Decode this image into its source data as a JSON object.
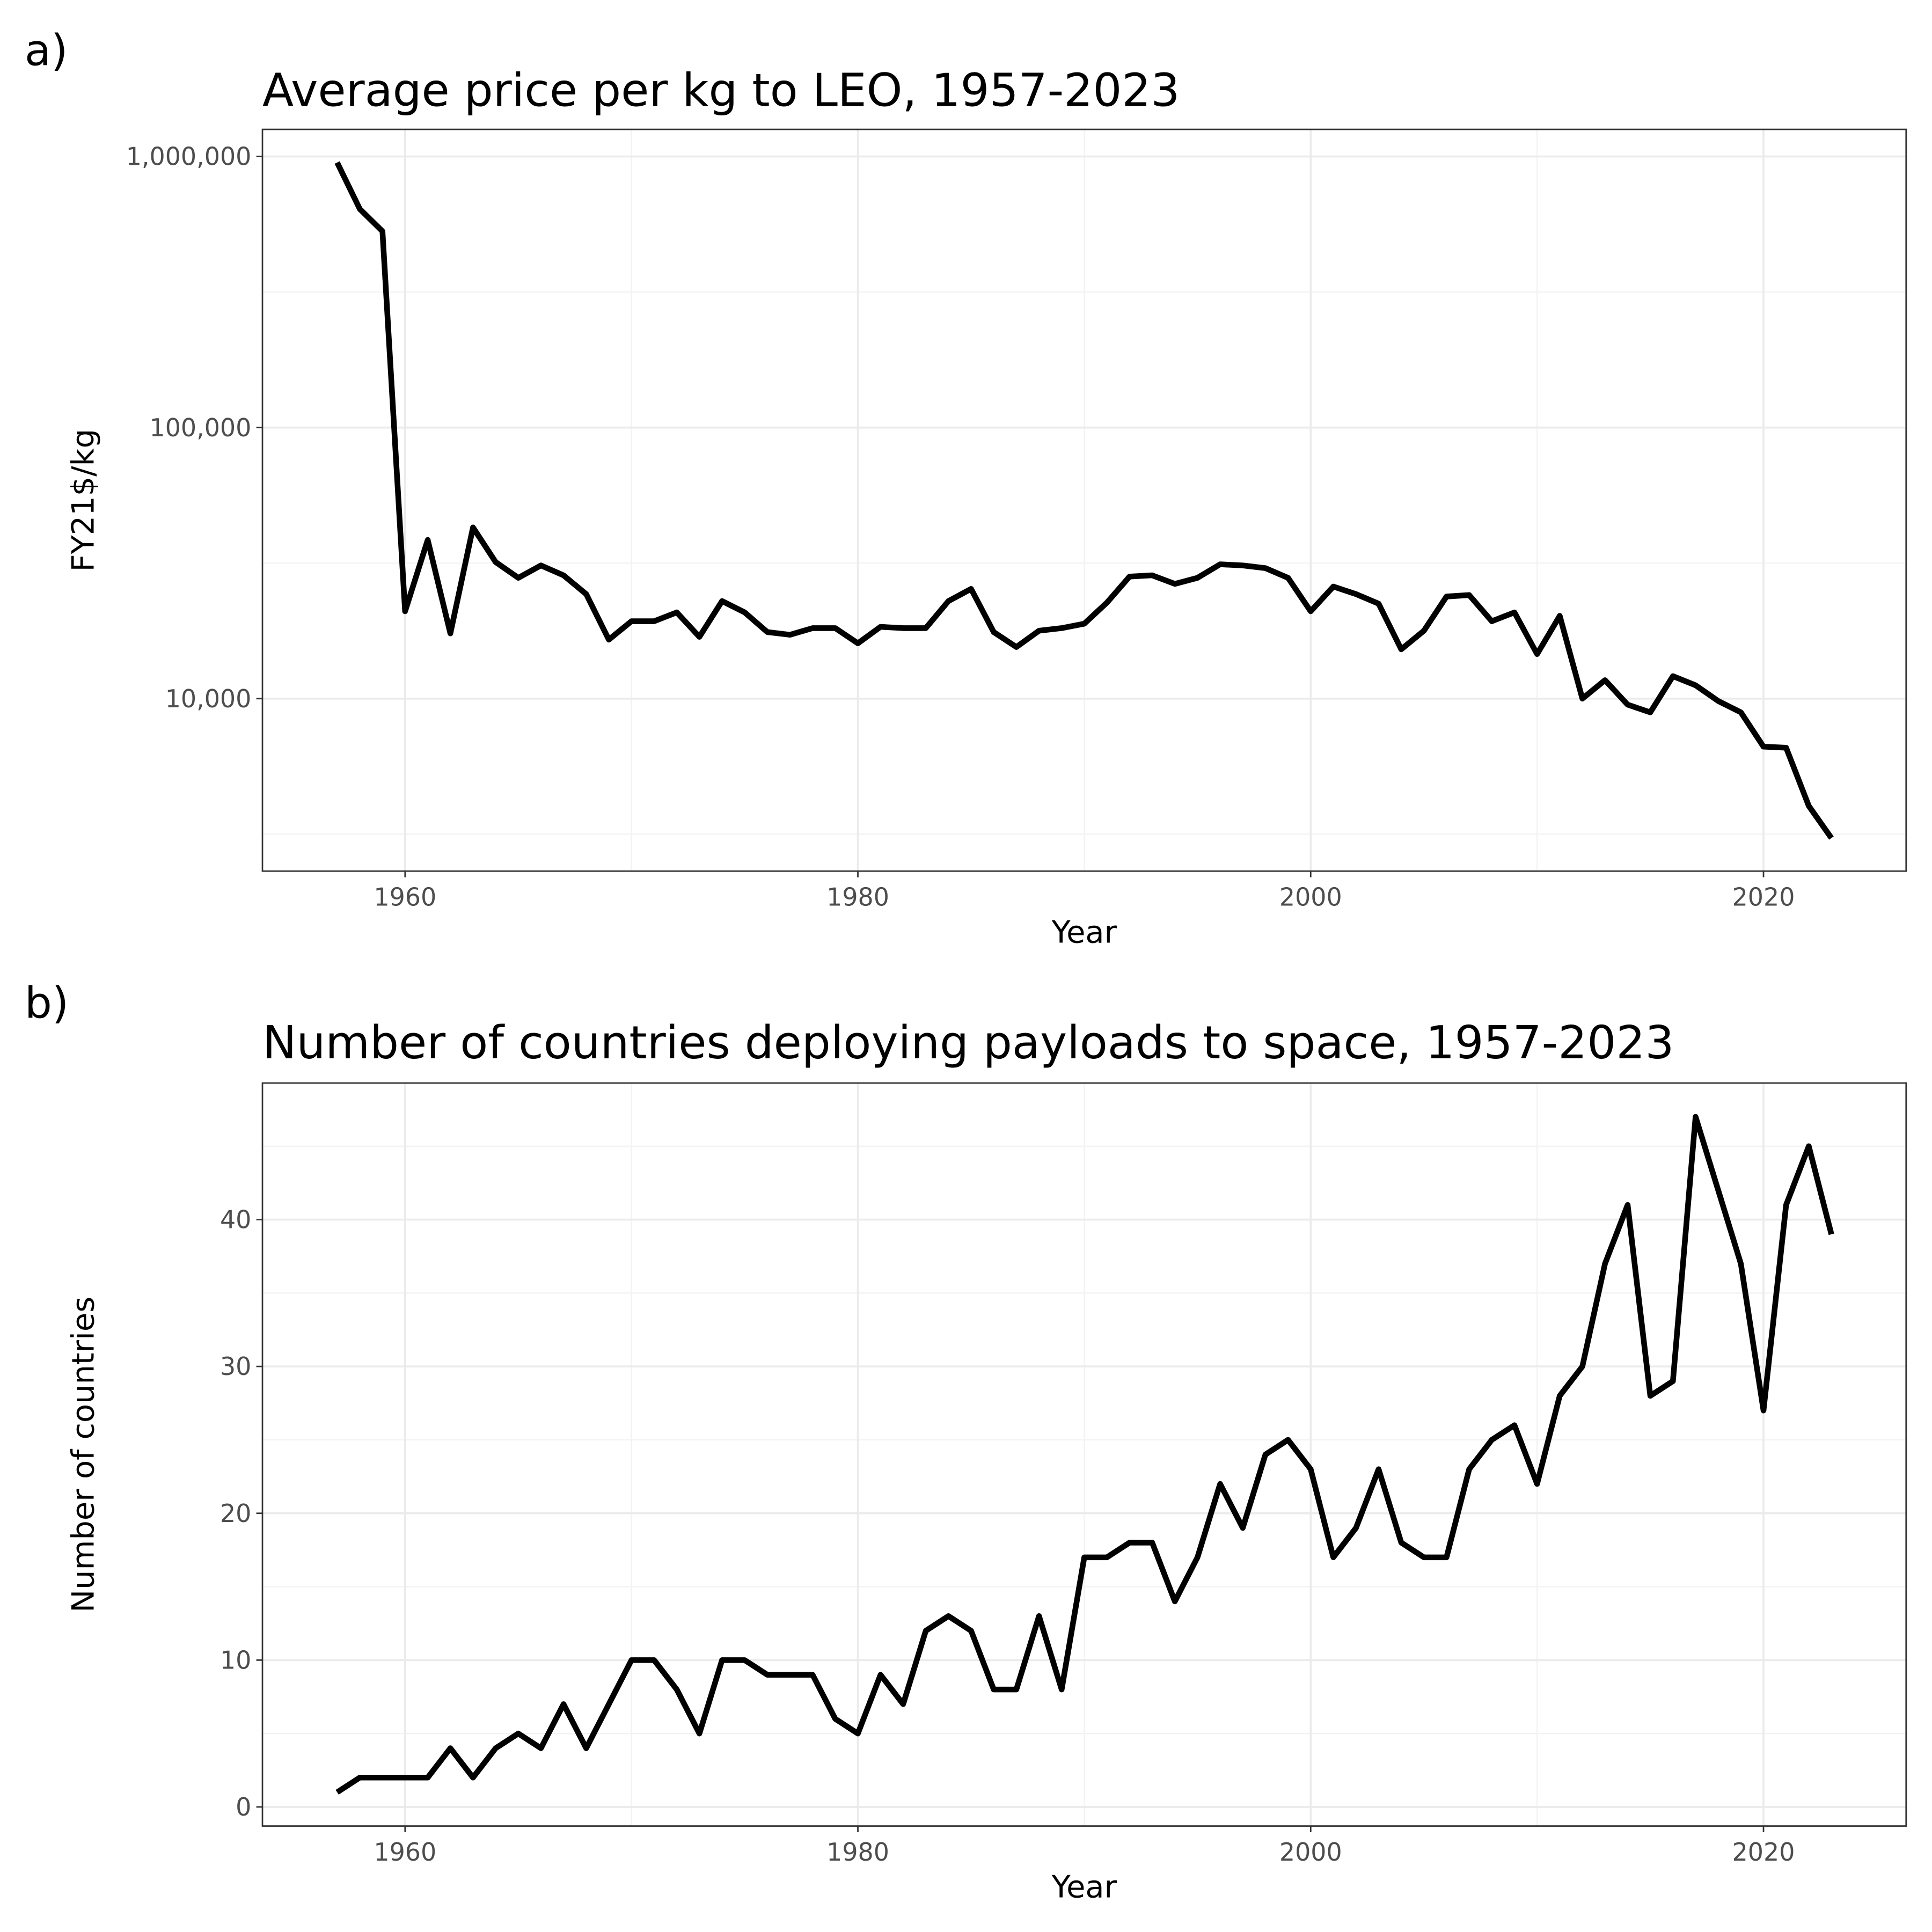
{
  "chart_data": [
    {
      "type": "line",
      "tag": "a)",
      "title": "Average price per kg to LEO, 1957-2023",
      "xlabel": "Year",
      "ylabel": "FY21$/kg",
      "log_y": true,
      "grid": true,
      "color": "#000000",
      "x": [
        1957,
        1958,
        1959,
        1960,
        1961,
        1962,
        1963,
        1964,
        1965,
        1966,
        1967,
        1968,
        1969,
        1970,
        1971,
        1972,
        1973,
        1974,
        1975,
        1976,
        1977,
        1978,
        1979,
        1980,
        1981,
        1982,
        1983,
        1984,
        1985,
        1986,
        1987,
        1988,
        1989,
        1990,
        1991,
        1992,
        1993,
        1994,
        1995,
        1996,
        1997,
        1998,
        1999,
        2000,
        2001,
        2002,
        2003,
        2004,
        2005,
        2006,
        2007,
        2008,
        2009,
        2010,
        2011,
        2012,
        2013,
        2014,
        2015,
        2016,
        2017,
        2018,
        2019,
        2020,
        2021,
        2022,
        2023
      ],
      "values": [
        950000,
        640000,
        530000,
        21000,
        38500,
        17400,
        42800,
        31900,
        27900,
        31000,
        28500,
        24300,
        16500,
        19300,
        19300,
        20800,
        16900,
        22900,
        20800,
        17600,
        17200,
        18200,
        18200,
        16000,
        18400,
        18200,
        18200,
        22900,
        25400,
        17600,
        15500,
        17800,
        18200,
        18900,
        22600,
        28200,
        28500,
        26500,
        27900,
        31300,
        31000,
        30300,
        27900,
        21000,
        25900,
        24300,
        22400,
        15200,
        17800,
        23800,
        24100,
        19300,
        20800,
        14600,
        20200,
        10000,
        11700,
        9500,
        8900,
        12100,
        11200,
        9800,
        8900,
        6650,
        6590,
        4020,
        3060
      ],
      "xlim": [
        1953.7,
        2026.3
      ],
      "xticks": [
        1960,
        1980,
        2000,
        2020
      ],
      "xminor": [
        1970,
        1990,
        2010
      ],
      "ylim": [
        2310,
        1259000
      ],
      "yticks": [
        {
          "value": 10000,
          "label": "10,000"
        },
        {
          "value": 100000,
          "label": "100,000"
        },
        {
          "value": 1000000,
          "label": "1,000,000"
        }
      ],
      "yminor": [
        3162,
        31623,
        316228
      ]
    },
    {
      "type": "line",
      "tag": "b)",
      "title": "Number of countries deploying payloads to space, 1957-2023",
      "xlabel": "Year",
      "ylabel": "Number of countries",
      "log_y": false,
      "grid": true,
      "color": "#000000",
      "x": [
        1957,
        1958,
        1959,
        1960,
        1961,
        1962,
        1963,
        1964,
        1965,
        1966,
        1967,
        1968,
        1969,
        1970,
        1971,
        1972,
        1973,
        1974,
        1975,
        1976,
        1977,
        1978,
        1979,
        1980,
        1981,
        1982,
        1983,
        1984,
        1985,
        1986,
        1987,
        1988,
        1989,
        1990,
        1991,
        1992,
        1993,
        1994,
        1995,
        1996,
        1997,
        1998,
        1999,
        2000,
        2001,
        2002,
        2003,
        2004,
        2005,
        2006,
        2007,
        2008,
        2009,
        2010,
        2011,
        2012,
        2013,
        2014,
        2015,
        2016,
        2017,
        2018,
        2019,
        2020,
        2021,
        2022,
        2023
      ],
      "values": [
        1,
        2,
        2,
        2,
        2,
        4,
        2,
        4,
        5,
        4,
        7,
        4,
        7,
        10,
        10,
        8,
        5,
        10,
        10,
        9,
        9,
        9,
        6,
        5,
        9,
        7,
        12,
        13,
        12,
        8,
        8,
        13,
        8,
        17,
        17,
        18,
        18,
        14,
        17,
        22,
        19,
        24,
        25,
        23,
        17,
        19,
        23,
        18,
        17,
        17,
        23,
        25,
        26,
        22,
        28,
        30,
        37,
        41,
        28,
        29,
        47,
        42,
        37,
        27,
        41,
        45,
        39
      ],
      "xlim": [
        1953.7,
        2026.3
      ],
      "xticks": [
        1960,
        1980,
        2000,
        2020
      ],
      "xminor": [
        1970,
        1990,
        2010
      ],
      "ylim": [
        -1.3,
        49.3
      ],
      "yticks": [
        0,
        10,
        20,
        30,
        40
      ],
      "yminor": [
        5,
        15,
        25,
        35,
        45
      ]
    }
  ]
}
